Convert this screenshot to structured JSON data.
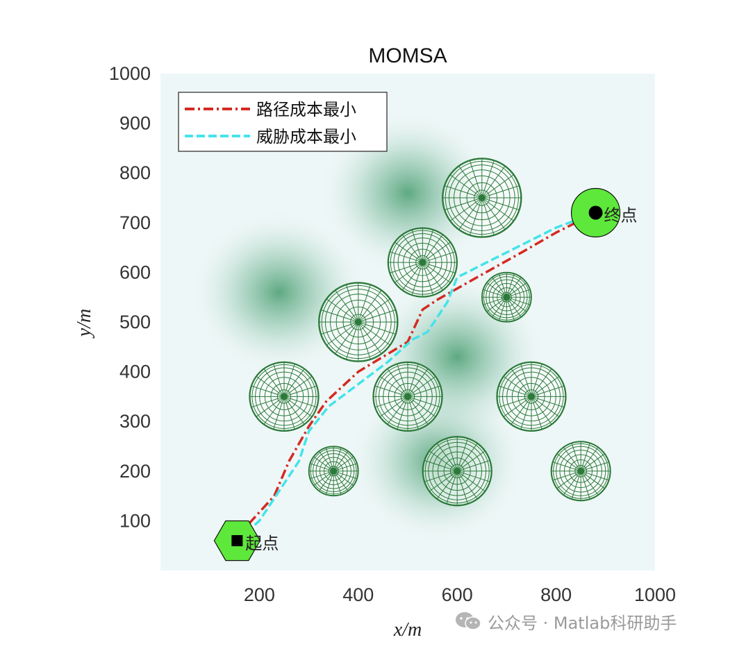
{
  "chart_data": {
    "type": "line",
    "title": "MOMSA",
    "xlabel": "x/m",
    "ylabel": "y/m",
    "xlim": [
      0,
      1000
    ],
    "ylim": [
      0,
      1000
    ],
    "x_ticks": [
      200,
      400,
      600,
      800,
      1000
    ],
    "y_ticks": [
      100,
      200,
      300,
      400,
      500,
      600,
      700,
      800,
      900,
      1000
    ],
    "grid": false,
    "legend_position": "top-left",
    "series": [
      {
        "name": "路径成本最小",
        "color": "#d42a23",
        "line_style": "dash-dot",
        "points": [
          [
            155,
            65
          ],
          [
            175,
            90
          ],
          [
            230,
            150
          ],
          [
            260,
            220
          ],
          [
            300,
            290
          ],
          [
            335,
            340
          ],
          [
            400,
            400
          ],
          [
            500,
            460
          ],
          [
            530,
            525
          ],
          [
            560,
            545
          ],
          [
            640,
            590
          ],
          [
            730,
            640
          ],
          [
            800,
            680
          ],
          [
            880,
            720
          ]
        ]
      },
      {
        "name": "威胁成本最小",
        "color": "#44e3ea",
        "line_style": "dashed",
        "points": [
          [
            155,
            60
          ],
          [
            200,
            100
          ],
          [
            240,
            160
          ],
          [
            280,
            220
          ],
          [
            300,
            280
          ],
          [
            340,
            330
          ],
          [
            400,
            375
          ],
          [
            460,
            420
          ],
          [
            510,
            465
          ],
          [
            540,
            480
          ],
          [
            580,
            540
          ],
          [
            600,
            590
          ],
          [
            640,
            610
          ],
          [
            720,
            650
          ],
          [
            800,
            690
          ],
          [
            880,
            720
          ]
        ]
      }
    ],
    "obstacles": [
      {
        "x": 650,
        "y": 750,
        "r": 80
      },
      {
        "x": 530,
        "y": 620,
        "r": 70
      },
      {
        "x": 700,
        "y": 550,
        "r": 50
      },
      {
        "x": 400,
        "y": 500,
        "r": 80
      },
      {
        "x": 250,
        "y": 350,
        "r": 70
      },
      {
        "x": 500,
        "y": 350,
        "r": 70
      },
      {
        "x": 750,
        "y": 350,
        "r": 70
      },
      {
        "x": 350,
        "y": 200,
        "r": 50
      },
      {
        "x": 600,
        "y": 200,
        "r": 70
      },
      {
        "x": 850,
        "y": 200,
        "r": 60
      }
    ],
    "threat_field_centers": [
      {
        "x": 500,
        "y": 760
      },
      {
        "x": 240,
        "y": 560
      },
      {
        "x": 560,
        "y": 220
      },
      {
        "x": 600,
        "y": 430
      }
    ],
    "start": {
      "x": 155,
      "y": 60,
      "label": "起点"
    },
    "goal": {
      "x": 880,
      "y": 720,
      "label": "终点"
    },
    "colors": {
      "background": "#eef7f7",
      "obstacle": "#2b7a3a",
      "marker_fill": "#5ee83b"
    }
  },
  "watermark": {
    "text": "公众号 · Matlab科研助手",
    "icon": "wechat-icon"
  }
}
